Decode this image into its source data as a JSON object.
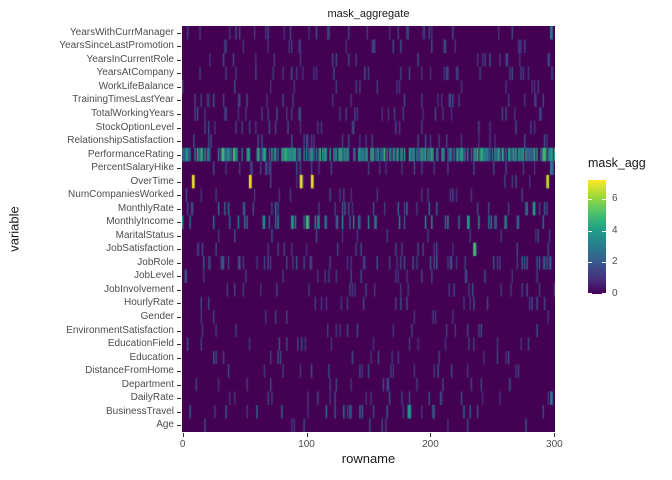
{
  "chart_data": {
    "type": "heatmap",
    "title": "mask_aggregate",
    "xlabel": "rowname",
    "ylabel": "variable",
    "x_range": [
      0,
      300
    ],
    "x_tick_values": [
      0,
      100,
      200,
      300
    ],
    "x_tick_labels": [
      "0",
      "100",
      "200",
      "300"
    ],
    "y_categories": [
      "YearsWithCurrManager",
      "YearsSinceLastPromotion",
      "YearsInCurrentRole",
      "YearsAtCompany",
      "WorkLifeBalance",
      "TrainingTimesLastYear",
      "TotalWorkingYears",
      "StockOptionLevel",
      "RelationshipSatisfaction",
      "PerformanceRating",
      "PercentSalaryHike",
      "OverTime",
      "NumCompaniesWorked",
      "MonthlyRate",
      "MonthlyIncome",
      "MaritalStatus",
      "JobSatisfaction",
      "JobRole",
      "JobLevel",
      "JobInvolvement",
      "HourlyRate",
      "Gender",
      "EnvironmentSatisfaction",
      "EducationField",
      "Education",
      "DistanceFromHome",
      "Department",
      "DailyRate",
      "BusinessTravel",
      "Age"
    ],
    "legend": {
      "title": "mask_agg",
      "tick_values": [
        0,
        2,
        4,
        6
      ],
      "tick_labels": [
        "0",
        "2",
        "4",
        "6"
      ]
    },
    "colormap": {
      "name": "viridis",
      "domain": [
        0,
        7.2
      ],
      "stops": [
        {
          "t": 0.0,
          "color": "#440154"
        },
        {
          "t": 0.14,
          "color": "#46327e"
        },
        {
          "t": 0.29,
          "color": "#365c8d"
        },
        {
          "t": 0.43,
          "color": "#277f8e"
        },
        {
          "t": 0.57,
          "color": "#1fa187"
        },
        {
          "t": 0.71,
          "color": "#4ac16d"
        },
        {
          "t": 0.86,
          "color": "#a0da39"
        },
        {
          "t": 1.0,
          "color": "#fde725"
        }
      ]
    },
    "background_value": 0,
    "rows": [
      {
        "variable": "YearsWithCurrManager",
        "density": 0.09,
        "vmin": 1,
        "vmax": 2
      },
      {
        "variable": "YearsSinceLastPromotion",
        "density": 0.07,
        "vmin": 1,
        "vmax": 2
      },
      {
        "variable": "YearsInCurrentRole",
        "density": 0.07,
        "vmin": 1,
        "vmax": 2
      },
      {
        "variable": "YearsAtCompany",
        "density": 0.09,
        "vmin": 1,
        "vmax": 2
      },
      {
        "variable": "WorkLifeBalance",
        "density": 0.09,
        "vmin": 1,
        "vmax": 2
      },
      {
        "variable": "TrainingTimesLastYear",
        "density": 0.09,
        "vmin": 1,
        "vmax": 2
      },
      {
        "variable": "TotalWorkingYears",
        "density": 0.07,
        "vmin": 1,
        "vmax": 2
      },
      {
        "variable": "StockOptionLevel",
        "density": 0.07,
        "vmin": 1,
        "vmax": 2
      },
      {
        "variable": "RelationshipSatisfaction",
        "density": 0.09,
        "vmin": 1,
        "vmax": 2
      },
      {
        "variable": "PerformanceRating",
        "density": 0.68,
        "vmin": 2,
        "vmax": 5
      },
      {
        "variable": "PercentSalaryHike",
        "density": 0.09,
        "vmin": 1,
        "vmax": 2
      },
      {
        "variable": "OverTime",
        "density": 0.03,
        "vmin": 1,
        "vmax": 2
      },
      {
        "variable": "NumCompaniesWorked",
        "density": 0.07,
        "vmin": 1,
        "vmax": 2
      },
      {
        "variable": "MonthlyRate",
        "density": 0.11,
        "vmin": 1,
        "vmax": 3
      },
      {
        "variable": "MonthlyIncome",
        "density": 0.16,
        "vmin": 2,
        "vmax": 4
      },
      {
        "variable": "MaritalStatus",
        "density": 0.05,
        "vmin": 1,
        "vmax": 2
      },
      {
        "variable": "JobSatisfaction",
        "density": 0.07,
        "vmin": 1,
        "vmax": 2
      },
      {
        "variable": "JobRole",
        "density": 0.2,
        "vmin": 1,
        "vmax": 2.5
      },
      {
        "variable": "JobLevel",
        "density": 0.07,
        "vmin": 1,
        "vmax": 2
      },
      {
        "variable": "JobInvolvement",
        "density": 0.07,
        "vmin": 1,
        "vmax": 2
      },
      {
        "variable": "HourlyRate",
        "density": 0.05,
        "vmin": 1,
        "vmax": 2
      },
      {
        "variable": "Gender",
        "density": 0.04,
        "vmin": 1,
        "vmax": 2
      },
      {
        "variable": "EnvironmentSatisfaction",
        "density": 0.07,
        "vmin": 1,
        "vmax": 2
      },
      {
        "variable": "EducationField",
        "density": 0.07,
        "vmin": 1,
        "vmax": 2
      },
      {
        "variable": "Education",
        "density": 0.05,
        "vmin": 1,
        "vmax": 2
      },
      {
        "variable": "DistanceFromHome",
        "density": 0.05,
        "vmin": 1,
        "vmax": 2
      },
      {
        "variable": "Department",
        "density": 0.04,
        "vmin": 1,
        "vmax": 2
      },
      {
        "variable": "DailyRate",
        "density": 0.07,
        "vmin": 1,
        "vmax": 2
      },
      {
        "variable": "BusinessTravel",
        "density": 0.09,
        "vmin": 1,
        "vmax": 3
      },
      {
        "variable": "Age",
        "density": 0.03,
        "vmin": 1,
        "vmax": 2
      }
    ],
    "highlights": [
      {
        "variable": "OverTime",
        "x": 8,
        "value": 7
      },
      {
        "variable": "OverTime",
        "x": 54,
        "value": 7
      },
      {
        "variable": "OverTime",
        "x": 95,
        "value": 7
      },
      {
        "variable": "OverTime",
        "x": 104,
        "value": 7
      },
      {
        "variable": "OverTime",
        "x": 294,
        "value": 6.5
      },
      {
        "variable": "MonthlyIncome",
        "x": 88,
        "value": 4
      },
      {
        "variable": "MonthlyIncome",
        "x": 100,
        "value": 5
      },
      {
        "variable": "MonthlyIncome",
        "x": 230,
        "value": 4
      },
      {
        "variable": "JobSatisfaction",
        "x": 235,
        "value": 5
      },
      {
        "variable": "BusinessTravel",
        "x": 182,
        "value": 4
      },
      {
        "variable": "MonthlyRate",
        "x": 283,
        "value": 4
      },
      {
        "variable": "PerformanceRating",
        "x": 297,
        "value": 4
      },
      {
        "variable": "YearsWithCurrManager",
        "x": 297,
        "value": 3
      },
      {
        "variable": "PercentSalaryHike",
        "x": 297,
        "value": 3
      },
      {
        "variable": "DailyRate",
        "x": 297,
        "value": 3
      }
    ]
  }
}
